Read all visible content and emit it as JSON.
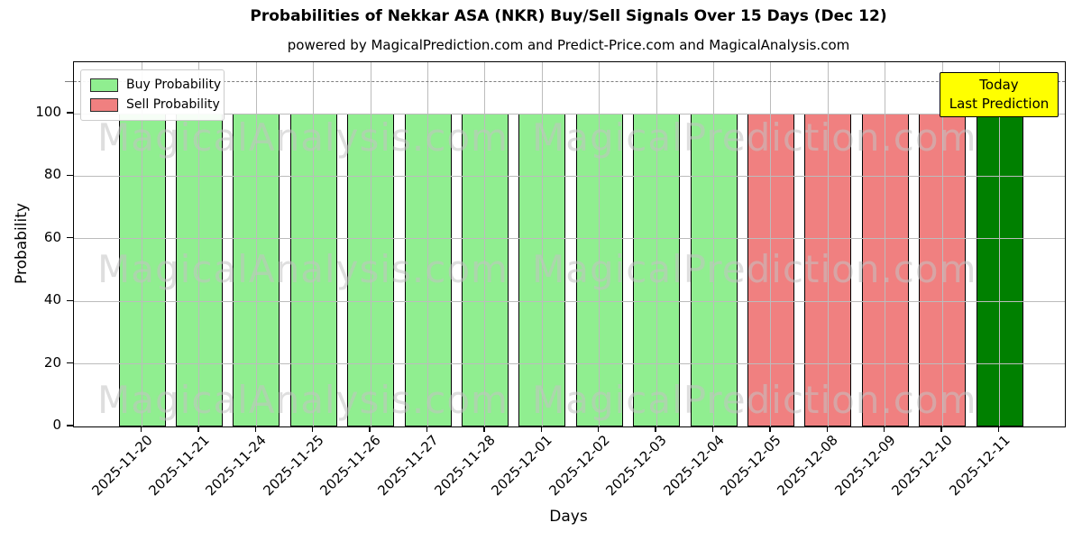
{
  "chart_data": {
    "type": "bar",
    "title": "Probabilities of Nekkar ASA (NKR) Buy/Sell Signals Over 15 Days (Dec 12)",
    "subtitle": "powered by MagicalPrediction.com and Predict-Price.com and MagicalAnalysis.com",
    "xlabel": "Days",
    "ylabel": "Probability",
    "ylim": [
      0,
      116
    ],
    "yticks": [
      0,
      20,
      40,
      60,
      80,
      100
    ],
    "grid": true,
    "categories": [
      "2025-11-20",
      "2025-11-21",
      "2025-11-24",
      "2025-11-25",
      "2025-11-26",
      "2025-11-27",
      "2025-11-28",
      "2025-12-01",
      "2025-12-02",
      "2025-12-03",
      "2025-12-04",
      "2025-12-05",
      "2025-12-08",
      "2025-12-09",
      "2025-12-10",
      "2025-12-11"
    ],
    "bars": [
      {
        "date": "2025-11-20",
        "value": 100,
        "signal": "buy",
        "color": "#90EE90"
      },
      {
        "date": "2025-11-21",
        "value": 100,
        "signal": "buy",
        "color": "#90EE90"
      },
      {
        "date": "2025-11-24",
        "value": 100,
        "signal": "buy",
        "color": "#90EE90"
      },
      {
        "date": "2025-11-25",
        "value": 100,
        "signal": "buy",
        "color": "#90EE90"
      },
      {
        "date": "2025-11-26",
        "value": 100,
        "signal": "buy",
        "color": "#90EE90"
      },
      {
        "date": "2025-11-27",
        "value": 100,
        "signal": "buy",
        "color": "#90EE90"
      },
      {
        "date": "2025-11-28",
        "value": 100,
        "signal": "buy",
        "color": "#90EE90"
      },
      {
        "date": "2025-12-01",
        "value": 100,
        "signal": "buy",
        "color": "#90EE90"
      },
      {
        "date": "2025-12-02",
        "value": 100,
        "signal": "buy",
        "color": "#90EE90"
      },
      {
        "date": "2025-12-03",
        "value": 100,
        "signal": "buy",
        "color": "#90EE90"
      },
      {
        "date": "2025-12-04",
        "value": 100,
        "signal": "buy",
        "color": "#90EE90"
      },
      {
        "date": "2025-12-05",
        "value": 100,
        "signal": "sell",
        "color": "#F08080"
      },
      {
        "date": "2025-12-08",
        "value": 100,
        "signal": "sell",
        "color": "#F08080"
      },
      {
        "date": "2025-12-09",
        "value": 100,
        "signal": "sell",
        "color": "#F08080"
      },
      {
        "date": "2025-12-10",
        "value": 100,
        "signal": "sell",
        "color": "#F08080"
      },
      {
        "date": "2025-12-11",
        "value": 100,
        "signal": "today-buy",
        "color": "#008000"
      }
    ],
    "series": [
      {
        "name": "Buy Probability",
        "color": "#90EE90",
        "values": [
          100,
          100,
          100,
          100,
          100,
          100,
          100,
          100,
          100,
          100,
          100,
          null,
          null,
          null,
          null,
          null
        ]
      },
      {
        "name": "Sell Probability",
        "color": "#F08080",
        "values": [
          null,
          null,
          null,
          null,
          null,
          null,
          null,
          null,
          null,
          null,
          null,
          100,
          100,
          100,
          100,
          null
        ]
      },
      {
        "name": "Today Last Prediction",
        "color": "#008000",
        "values": [
          null,
          null,
          null,
          null,
          null,
          null,
          null,
          null,
          null,
          null,
          null,
          null,
          null,
          null,
          null,
          100
        ]
      }
    ],
    "legend": {
      "position": "upper left",
      "entries": [
        {
          "label": "Buy Probability",
          "color": "#90EE90"
        },
        {
          "label": "Sell Probability",
          "color": "#F08080"
        }
      ]
    },
    "today_line": {
      "y": 110,
      "style": "dashed",
      "color": "#7f7f7f"
    },
    "annotation": {
      "lines": [
        "Today",
        "Last Prediction"
      ],
      "bg": "#FFFF00",
      "border": "#000000",
      "position": "top-right"
    },
    "watermarks": {
      "texts": [
        "MagicalAnalysis.com",
        "MagicalPrediction.com"
      ],
      "rows": 3
    }
  }
}
